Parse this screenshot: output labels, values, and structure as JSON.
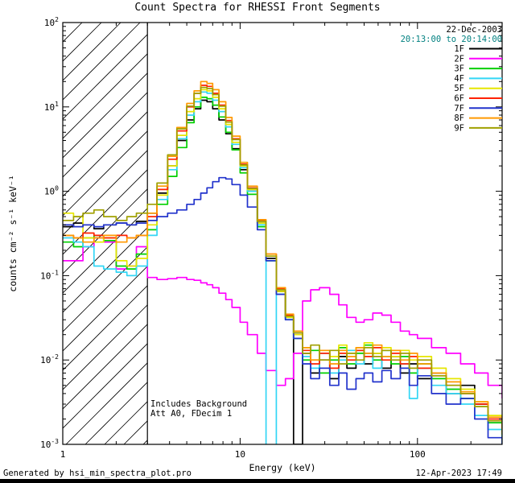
{
  "header": {
    "date": "22-Dec-2003",
    "time_range": "20:13:00 to 20:14:00",
    "time_color": "#008080"
  },
  "annotations": [
    "Includes Background",
    "Att A0, FDecim 1"
  ],
  "footer": {
    "left": "Generated by hsi_min_spectra_plot.pro",
    "right": "12-Apr-2023 17:49"
  },
  "chart_data": {
    "type": "line",
    "title": "Count Spectra for RHESSI Front Segments",
    "xlabel": "Energy (keV)",
    "ylabel": "counts cm⁻² s⁻¹ keV⁻¹",
    "xscale": "log",
    "yscale": "log",
    "xlim": [
      1,
      300
    ],
    "ylim": [
      0.001,
      100
    ],
    "x_ticks": [
      1,
      10,
      100
    ],
    "x_tick_labels": [
      "1",
      "10",
      "100"
    ],
    "y_tick_exponents": [
      2,
      1,
      0,
      -1,
      -2,
      -3
    ],
    "grid": false,
    "legend_position": "top-right",
    "hatch_region": {
      "x0": 1,
      "x1": 3
    },
    "x": [
      1.0,
      1.15,
      1.3,
      1.5,
      1.7,
      2.0,
      2.3,
      2.6,
      3.0,
      3.4,
      3.9,
      4.4,
      5.0,
      5.5,
      6.0,
      6.5,
      7.0,
      7.6,
      8.3,
      9.0,
      10,
      11,
      12.5,
      14,
      16,
      18,
      20,
      22.5,
      25,
      28,
      32,
      36,
      40,
      45,
      50,
      56,
      63,
      71,
      80,
      90,
      100,
      120,
      145,
      175,
      210,
      250,
      300
    ],
    "series": [
      {
        "name": "1F",
        "color": "#000000",
        "y": [
          0.38,
          0.42,
          0.4,
          0.36,
          0.4,
          0.42,
          0.4,
          0.44,
          0.55,
          0.95,
          2.0,
          4.0,
          7.0,
          9.5,
          12.0,
          11.5,
          9.5,
          7.0,
          4.8,
          3.2,
          1.8,
          1.0,
          0.42,
          0.16,
          0.065,
          0.032,
          0.001,
          0.012,
          0.007,
          0.01,
          0.006,
          0.011,
          0.008,
          0.013,
          0.009,
          0.012,
          0.008,
          0.011,
          0.007,
          0.009,
          0.006,
          0.007,
          0.004,
          0.005,
          0.003,
          0.0018,
          0.0012
        ]
      },
      {
        "name": "2F",
        "color": "#ff00ff",
        "y": [
          0.15,
          0.15,
          0.22,
          0.28,
          0.25,
          0.12,
          0.13,
          0.22,
          0.095,
          0.09,
          0.092,
          0.095,
          0.09,
          0.088,
          0.082,
          0.078,
          0.072,
          0.062,
          0.052,
          0.042,
          0.028,
          0.02,
          0.012,
          0.0075,
          0.005,
          0.006,
          0.012,
          0.05,
          0.068,
          0.072,
          0.06,
          0.045,
          0.032,
          0.028,
          0.03,
          0.036,
          0.034,
          0.028,
          0.022,
          0.02,
          0.018,
          0.014,
          0.012,
          0.009,
          0.007,
          0.005,
          0.0035
        ]
      },
      {
        "name": "3F",
        "color": "#00d000",
        "y": [
          0.25,
          0.22,
          0.28,
          0.3,
          0.26,
          0.13,
          0.12,
          0.18,
          0.35,
          0.7,
          1.5,
          3.3,
          6.5,
          10.0,
          13.0,
          12.5,
          10.5,
          7.6,
          5.0,
          3.1,
          1.65,
          0.92,
          0.38,
          0.15,
          0.06,
          0.03,
          0.018,
          0.01,
          0.013,
          0.007,
          0.01,
          0.014,
          0.009,
          0.012,
          0.015,
          0.01,
          0.013,
          0.009,
          0.011,
          0.007,
          0.009,
          0.006,
          0.0045,
          0.0035,
          0.0028,
          0.0018,
          0.0013
        ]
      },
      {
        "name": "4F",
        "color": "#33d6f5",
        "y": [
          0.28,
          0.25,
          0.22,
          0.13,
          0.12,
          0.11,
          0.1,
          0.13,
          0.3,
          0.8,
          1.8,
          4.2,
          8.0,
          11.5,
          15.0,
          14.5,
          12.0,
          8.8,
          5.8,
          3.6,
          1.9,
          1.0,
          0.4,
          0.0008,
          0.06,
          0.03,
          0.02,
          0.011,
          0.008,
          0.012,
          0.007,
          0.01,
          0.013,
          0.009,
          0.012,
          0.008,
          0.011,
          0.013,
          0.009,
          0.0035,
          0.008,
          0.005,
          0.004,
          0.003,
          0.0022,
          0.0015,
          0.001
        ]
      },
      {
        "name": "5F",
        "color": "#e6e600",
        "y": [
          0.55,
          0.5,
          0.28,
          0.25,
          0.28,
          0.15,
          0.13,
          0.16,
          0.4,
          0.9,
          2.0,
          4.6,
          8.8,
          12.5,
          16.0,
          15.5,
          13.0,
          9.5,
          6.2,
          3.8,
          2.0,
          1.05,
          0.42,
          0.17,
          0.065,
          0.032,
          0.02,
          0.014,
          0.01,
          0.013,
          0.011,
          0.015,
          0.012,
          0.014,
          0.016,
          0.012,
          0.014,
          0.011,
          0.013,
          0.01,
          0.011,
          0.008,
          0.006,
          0.0045,
          0.0032,
          0.0022,
          0.0016
        ]
      },
      {
        "name": "6F",
        "color": "#ff2200",
        "y": [
          0.3,
          0.28,
          0.32,
          0.3,
          0.28,
          0.3,
          0.28,
          0.3,
          0.5,
          1.05,
          2.4,
          5.2,
          10.0,
          14.5,
          18.0,
          17.5,
          14.5,
          10.5,
          6.9,
          4.2,
          2.1,
          1.1,
          0.45,
          0.18,
          0.07,
          0.034,
          0.021,
          0.013,
          0.009,
          0.012,
          0.008,
          0.012,
          0.01,
          0.013,
          0.011,
          0.014,
          0.01,
          0.012,
          0.009,
          0.011,
          0.008,
          0.0065,
          0.005,
          0.004,
          0.003,
          0.002,
          0.0014
        ]
      },
      {
        "name": "7F",
        "color": "#2233cc",
        "y": [
          0.4,
          0.38,
          0.4,
          0.38,
          0.4,
          0.42,
          0.4,
          0.42,
          0.45,
          0.5,
          0.55,
          0.6,
          0.7,
          0.8,
          0.95,
          1.1,
          1.3,
          1.45,
          1.4,
          1.2,
          0.9,
          0.65,
          0.35,
          0.15,
          0.06,
          0.03,
          0.018,
          0.009,
          0.006,
          0.008,
          0.005,
          0.007,
          0.0045,
          0.006,
          0.007,
          0.0055,
          0.0075,
          0.006,
          0.008,
          0.005,
          0.0065,
          0.004,
          0.003,
          0.0035,
          0.002,
          0.0012,
          0.0008
        ]
      },
      {
        "name": "8F",
        "color": "#ff9900",
        "y": [
          0.3,
          0.28,
          0.25,
          0.28,
          0.3,
          0.25,
          0.28,
          0.3,
          0.55,
          1.15,
          2.6,
          5.7,
          11.0,
          15.5,
          20.0,
          19.0,
          16.0,
          11.5,
          7.5,
          4.5,
          2.2,
          1.15,
          0.46,
          0.18,
          0.072,
          0.035,
          0.022,
          0.014,
          0.01,
          0.013,
          0.009,
          0.013,
          0.011,
          0.014,
          0.012,
          0.015,
          0.011,
          0.013,
          0.01,
          0.012,
          0.009,
          0.007,
          0.0055,
          0.0042,
          0.0032,
          0.0021,
          0.0015
        ]
      },
      {
        "name": "9F",
        "color": "#a0a000",
        "y": [
          0.45,
          0.5,
          0.55,
          0.6,
          0.5,
          0.45,
          0.5,
          0.55,
          0.7,
          1.25,
          2.7,
          5.5,
          10.2,
          14.5,
          17.0,
          16.5,
          14.0,
          10.2,
          6.6,
          4.1,
          2.05,
          1.08,
          0.44,
          0.17,
          0.068,
          0.033,
          0.021,
          0.012,
          0.015,
          0.01,
          0.013,
          0.009,
          0.012,
          0.01,
          0.014,
          0.011,
          0.013,
          0.01,
          0.012,
          0.008,
          0.01,
          0.0065,
          0.005,
          0.004,
          0.0028,
          0.0019,
          0.0013
        ]
      }
    ]
  }
}
